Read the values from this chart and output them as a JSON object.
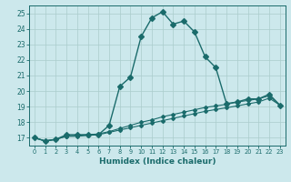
{
  "xlabel": "Humidex (Indice chaleur)",
  "background_color": "#cce8ec",
  "grid_color": "#aacccc",
  "line_color": "#1a6b6b",
  "x_main": [
    0,
    1,
    2,
    3,
    4,
    5,
    6,
    7,
    8,
    9,
    10,
    11,
    12,
    13,
    14,
    15,
    16,
    17,
    18,
    19,
    20,
    21,
    22,
    23
  ],
  "y_main": [
    17.0,
    16.8,
    16.9,
    17.2,
    17.2,
    17.2,
    17.2,
    17.8,
    20.3,
    20.9,
    23.5,
    24.7,
    25.1,
    24.3,
    24.5,
    23.8,
    22.2,
    21.5,
    19.2,
    19.3,
    19.5,
    19.5,
    19.8,
    19.1
  ],
  "x_line2": [
    0,
    1,
    2,
    3,
    4,
    5,
    6,
    7,
    8,
    9,
    10,
    11,
    12,
    13,
    14,
    15,
    16,
    17,
    18,
    19,
    20,
    21,
    22,
    23
  ],
  "y_line2": [
    17.0,
    16.8,
    16.9,
    17.1,
    17.15,
    17.2,
    17.25,
    17.4,
    17.6,
    17.8,
    18.0,
    18.15,
    18.35,
    18.5,
    18.65,
    18.8,
    18.95,
    19.05,
    19.15,
    19.3,
    19.4,
    19.5,
    19.7,
    19.1
  ],
  "x_line3": [
    0,
    1,
    2,
    3,
    4,
    5,
    6,
    7,
    8,
    9,
    10,
    11,
    12,
    13,
    14,
    15,
    16,
    17,
    18,
    19,
    20,
    21,
    22,
    23
  ],
  "y_line3": [
    17.0,
    16.8,
    16.9,
    17.1,
    17.1,
    17.15,
    17.2,
    17.35,
    17.5,
    17.65,
    17.8,
    17.95,
    18.1,
    18.25,
    18.4,
    18.55,
    18.7,
    18.82,
    18.93,
    19.05,
    19.18,
    19.3,
    19.55,
    19.1
  ],
  "ylim": [
    16.5,
    25.5
  ],
  "xlim": [
    -0.5,
    23.5
  ],
  "yticks": [
    17,
    18,
    19,
    20,
    21,
    22,
    23,
    24,
    25
  ],
  "xticks": [
    0,
    1,
    2,
    3,
    4,
    5,
    6,
    7,
    8,
    9,
    10,
    11,
    12,
    13,
    14,
    15,
    16,
    17,
    18,
    19,
    20,
    21,
    22,
    23
  ],
  "xtick_labels": [
    "0",
    "1",
    "2",
    "3",
    "4",
    "5",
    "6",
    "7",
    "8",
    "9",
    "10",
    "11",
    "12",
    "13",
    "14",
    "15",
    "16",
    "17",
    "18",
    "19",
    "20",
    "21",
    "22",
    "23"
  ],
  "marker_main": "D",
  "marker_sub": "D",
  "markersize_main": 3.0,
  "markersize_sub": 2.0,
  "linewidth_main": 1.0,
  "linewidth_sub": 0.8
}
